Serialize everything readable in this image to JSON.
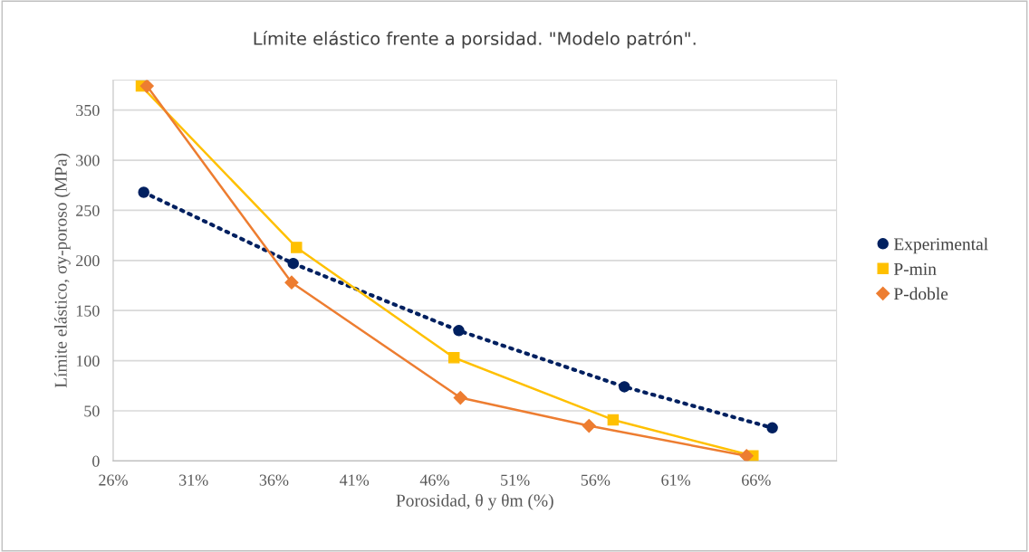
{
  "chart_data": {
    "type": "line",
    "title": "Límite elástico frente a porsidad. \"Modelo patrón\".",
    "xlabel": "Porosidad, θ y θm (%)",
    "ylabel": "Límite elástico, σy-poroso (MPa)",
    "xlim": [
      26,
      71
    ],
    "ylim": [
      0,
      380
    ],
    "xticks": [
      {
        "value": 26,
        "label": "26%"
      },
      {
        "value": 31,
        "label": "31%"
      },
      {
        "value": 36,
        "label": "36%"
      },
      {
        "value": 41,
        "label": "41%"
      },
      {
        "value": 46,
        "label": "46%"
      },
      {
        "value": 51,
        "label": "51%"
      },
      {
        "value": 56,
        "label": "56%"
      },
      {
        "value": 61,
        "label": "61%"
      },
      {
        "value": 66,
        "label": "66%"
      }
    ],
    "yticks": [
      0,
      50,
      100,
      150,
      200,
      250,
      300,
      350
    ],
    "grid": "y",
    "legend": "right",
    "series": [
      {
        "name": "Experimental",
        "color": "#002060",
        "marker": "circle",
        "line_style": "dotted",
        "x": [
          27.9,
          37.2,
          47.5,
          57.8,
          67.0
        ],
        "values": [
          268,
          197,
          130,
          74,
          33
        ]
      },
      {
        "name": "P-min",
        "color": "#ffc000",
        "marker": "square",
        "line_style": "solid",
        "x": [
          27.75,
          37.4,
          47.2,
          57.1,
          65.8
        ],
        "values": [
          374,
          213,
          103,
          41,
          5
        ]
      },
      {
        "name": "P-doble",
        "color": "#ed7d31",
        "marker": "diamond",
        "line_style": "solid",
        "x": [
          28.1,
          37.1,
          47.6,
          55.6,
          65.4
        ],
        "values": [
          374,
          178,
          63,
          35,
          5
        ]
      }
    ]
  }
}
